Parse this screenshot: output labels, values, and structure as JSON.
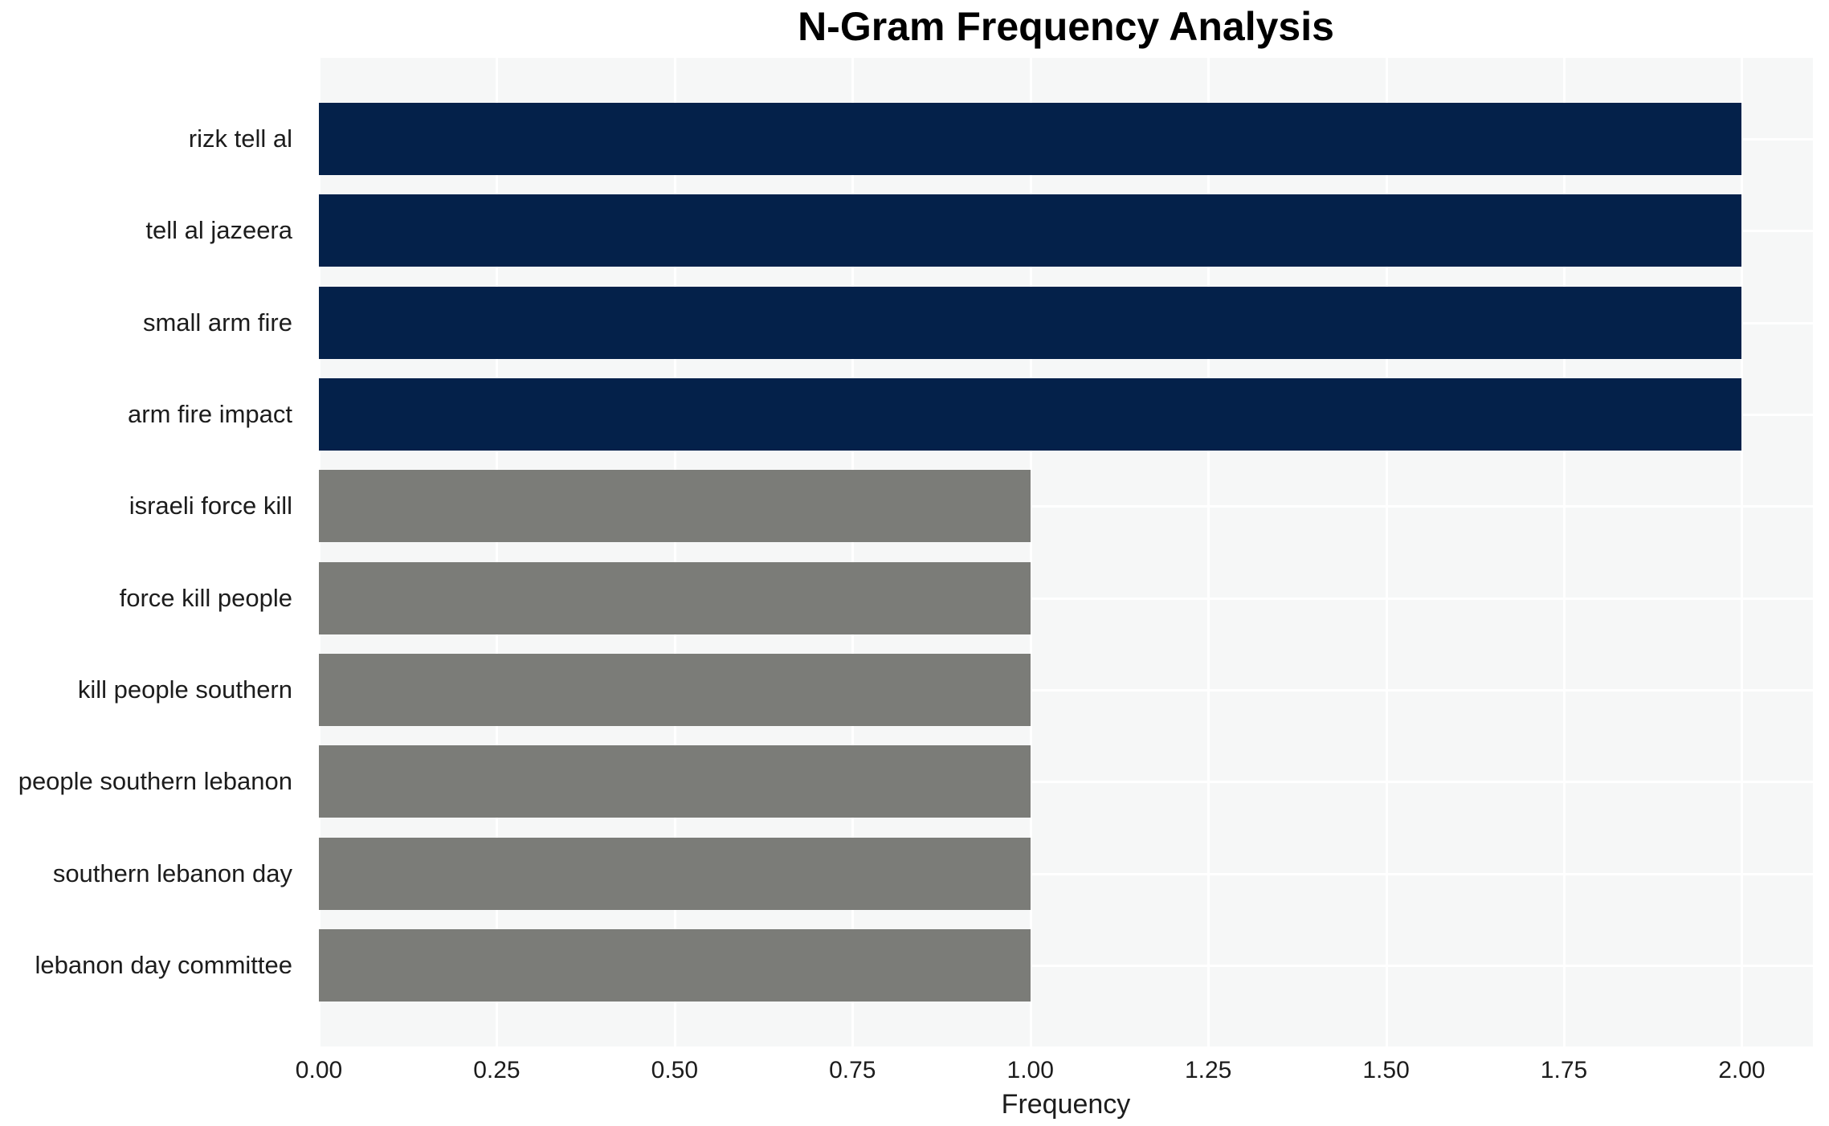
{
  "colors": {
    "plot_background": "#f6f7f7",
    "gridline": "#ffffff",
    "bar_high": "#04214a",
    "bar_low": "#7b7c78",
    "text": "#1c1c1c",
    "title_text": "#000000"
  },
  "chart_data": {
    "type": "bar",
    "orientation": "horizontal",
    "title": "N-Gram Frequency Analysis",
    "xlabel": "Frequency",
    "ylabel": "",
    "categories": [
      "rizk tell al",
      "tell al jazeera",
      "small arm fire",
      "arm fire impact",
      "israeli force kill",
      "force kill people",
      "kill people southern",
      "people southern lebanon",
      "southern lebanon day",
      "lebanon day committee"
    ],
    "values": [
      2.0,
      2.0,
      2.0,
      2.0,
      1.0,
      1.0,
      1.0,
      1.0,
      1.0,
      1.0
    ],
    "bar_colors": [
      "#04214a",
      "#04214a",
      "#04214a",
      "#04214a",
      "#7b7c78",
      "#7b7c78",
      "#7b7c78",
      "#7b7c78",
      "#7b7c78",
      "#7b7c78"
    ],
    "xlim": [
      0,
      2.1
    ],
    "xticks": [
      "0.00",
      "0.25",
      "0.50",
      "0.75",
      "1.00",
      "1.25",
      "1.50",
      "1.75",
      "2.00"
    ],
    "grid": true,
    "legend": false
  }
}
